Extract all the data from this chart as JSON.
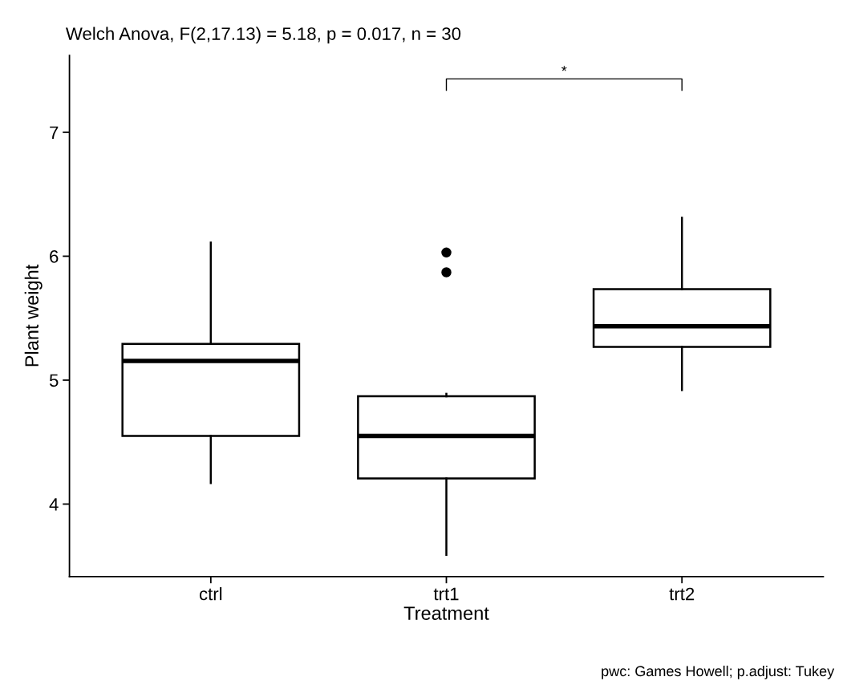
{
  "chart_data": {
    "type": "box",
    "title": "Welch Anova, F(2,17.13) = 5.18, p = 0.017, n = 30",
    "xlabel": "Treatment",
    "ylabel": "Plant weight",
    "categories": [
      "ctrl",
      "trt1",
      "trt2"
    ],
    "boxes": [
      {
        "low": 4.17,
        "q1": 4.55,
        "median": 5.155,
        "q3": 5.2925,
        "high": 6.11
      },
      {
        "low": 3.59,
        "q1": 4.2075,
        "median": 4.55,
        "q3": 4.87,
        "high": 4.89,
        "outliers": [
          5.87,
          6.03
        ]
      },
      {
        "low": 4.92,
        "q1": 5.2675,
        "median": 5.435,
        "q3": 5.735,
        "high": 6.31
      }
    ],
    "ylim": [
      3.415,
      7.62
    ],
    "yticks": [
      4,
      5,
      6,
      7
    ],
    "grid": false,
    "legend": false,
    "annotations": [
      "*",
      "pwc: Games Howell; p.adjust: Tukey"
    ]
  }
}
